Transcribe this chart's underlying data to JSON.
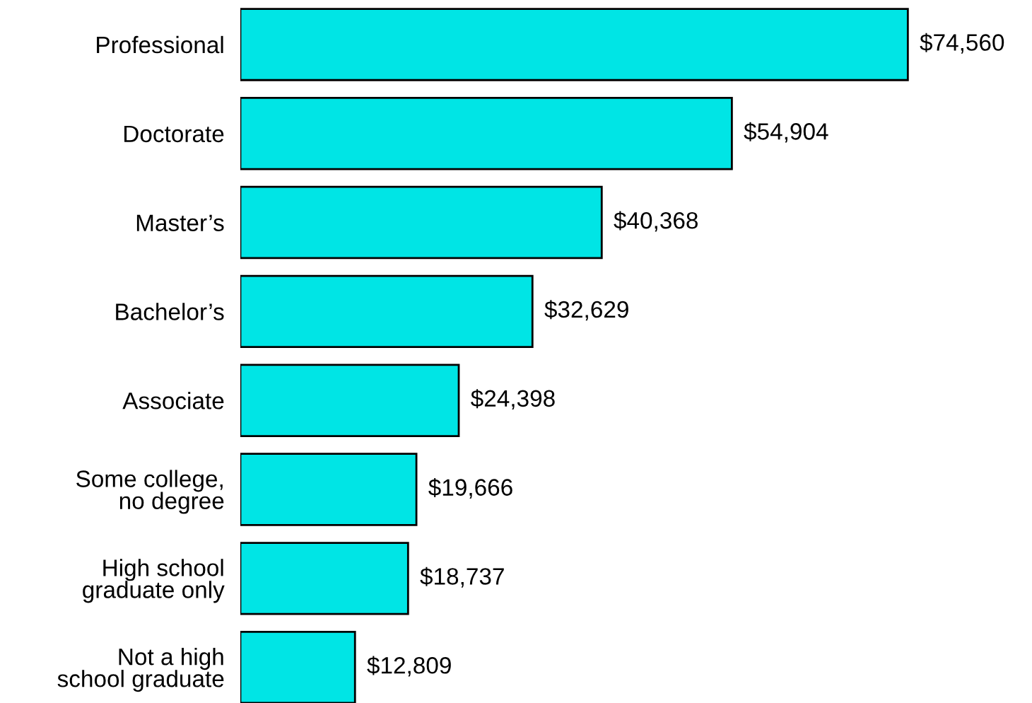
{
  "chart_data": {
    "type": "bar",
    "orientation": "horizontal",
    "categories": [
      "Professional",
      "Doctorate",
      "Master’s",
      "Bachelor’s",
      "Associate",
      "Some college,\nno degree",
      "High school\ngraduate only",
      "Not a high\nschool graduate"
    ],
    "values": [
      74560,
      54904,
      40368,
      32629,
      24398,
      19666,
      18737,
      12809
    ],
    "value_labels": [
      "$74,560",
      "$54,904",
      "$40,368",
      "$32,629",
      "$24,398",
      "$19,666",
      "$18,737",
      "$12,809"
    ],
    "color": "#00e5e5",
    "grid": false,
    "legend": false
  }
}
